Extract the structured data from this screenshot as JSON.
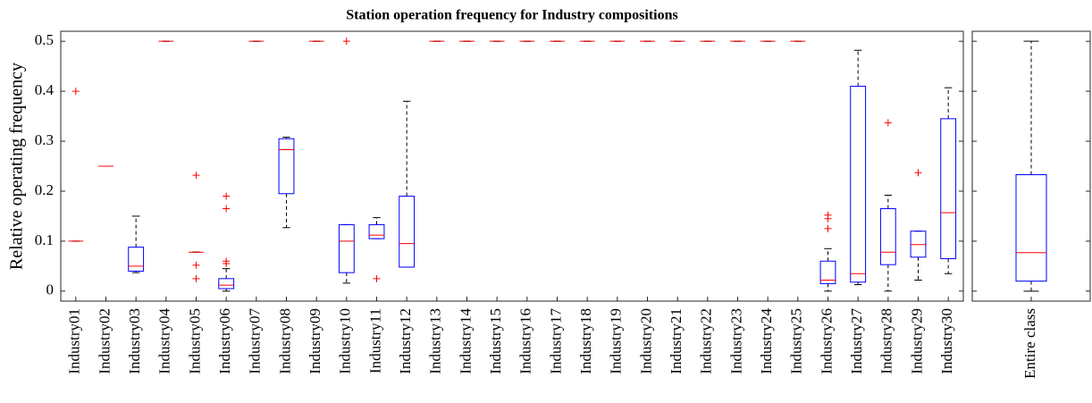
{
  "chart_data": [
    {
      "type": "box",
      "title": "Station operation frequency for Industry compositions",
      "ylabel": "Relative operating frequency",
      "categories": [
        "Industry01",
        "Industry02",
        "Industry03",
        "Industry04",
        "Industry05",
        "Industry06",
        "Industry07",
        "Industry08",
        "Industry09",
        "Industry10",
        "Industry11",
        "Industry12",
        "Industry13",
        "Industry14",
        "Industry15",
        "Industry16",
        "Industry17",
        "Industry18",
        "Industry19",
        "Industry20",
        "Industry21",
        "Industry22",
        "Industry23",
        "Industry24",
        "Industry25",
        "Industry26",
        "Industry27",
        "Industry28",
        "Industry29",
        "Industry30"
      ],
      "boxes": [
        {
          "whislo": 0.1,
          "q1": 0.1,
          "med": 0.1,
          "q3": 0.1,
          "whishi": 0.1,
          "fliers": [
            0.4
          ]
        },
        {
          "whislo": 0.25,
          "q1": 0.25,
          "med": 0.25,
          "q3": 0.25,
          "whishi": 0.25,
          "fliers": []
        },
        {
          "whislo": 0.037,
          "q1": 0.04,
          "med": 0.05,
          "q3": 0.088,
          "whishi": 0.15,
          "fliers": []
        },
        {
          "whislo": 0.5,
          "q1": 0.5,
          "med": 0.5,
          "q3": 0.5,
          "whishi": 0.5,
          "fliers": []
        },
        {
          "whislo": 0.078,
          "q1": 0.078,
          "med": 0.078,
          "q3": 0.078,
          "whishi": 0.078,
          "fliers": [
            0.232,
            0.052,
            0.025
          ]
        },
        {
          "whislo": 0,
          "q1": 0.005,
          "med": 0.012,
          "q3": 0.025,
          "whishi": 0.045,
          "fliers": [
            0.19,
            0.165,
            0.06,
            0.055
          ]
        },
        {
          "whislo": 0.5,
          "q1": 0.5,
          "med": 0.5,
          "q3": 0.5,
          "whishi": 0.5,
          "fliers": []
        },
        {
          "whislo": 0.127,
          "q1": 0.195,
          "med": 0.283,
          "q3": 0.305,
          "whishi": 0.308,
          "fliers": []
        },
        {
          "whislo": 0.5,
          "q1": 0.5,
          "med": 0.5,
          "q3": 0.5,
          "whishi": 0.5,
          "fliers": []
        },
        {
          "whislo": 0.016,
          "q1": 0.037,
          "med": 0.1,
          "q3": 0.133,
          "whishi": 0.133,
          "fliers": [
            0.5
          ]
        },
        {
          "whislo": 0.105,
          "q1": 0.105,
          "med": 0.112,
          "q3": 0.133,
          "whishi": 0.147,
          "fliers": [
            0.025
          ]
        },
        {
          "whislo": 0.048,
          "q1": 0.048,
          "med": 0.095,
          "q3": 0.19,
          "whishi": 0.38,
          "fliers": []
        },
        {
          "whislo": 0.5,
          "q1": 0.5,
          "med": 0.5,
          "q3": 0.5,
          "whishi": 0.5,
          "fliers": []
        },
        {
          "whislo": 0.5,
          "q1": 0.5,
          "med": 0.5,
          "q3": 0.5,
          "whishi": 0.5,
          "fliers": []
        },
        {
          "whislo": 0.5,
          "q1": 0.5,
          "med": 0.5,
          "q3": 0.5,
          "whishi": 0.5,
          "fliers": []
        },
        {
          "whislo": 0.5,
          "q1": 0.5,
          "med": 0.5,
          "q3": 0.5,
          "whishi": 0.5,
          "fliers": []
        },
        {
          "whislo": 0.5,
          "q1": 0.5,
          "med": 0.5,
          "q3": 0.5,
          "whishi": 0.5,
          "fliers": []
        },
        {
          "whislo": 0.5,
          "q1": 0.5,
          "med": 0.5,
          "q3": 0.5,
          "whishi": 0.5,
          "fliers": []
        },
        {
          "whislo": 0.5,
          "q1": 0.5,
          "med": 0.5,
          "q3": 0.5,
          "whishi": 0.5,
          "fliers": []
        },
        {
          "whislo": 0.5,
          "q1": 0.5,
          "med": 0.5,
          "q3": 0.5,
          "whishi": 0.5,
          "fliers": []
        },
        {
          "whislo": 0.5,
          "q1": 0.5,
          "med": 0.5,
          "q3": 0.5,
          "whishi": 0.5,
          "fliers": []
        },
        {
          "whislo": 0.5,
          "q1": 0.5,
          "med": 0.5,
          "q3": 0.5,
          "whishi": 0.5,
          "fliers": []
        },
        {
          "whislo": 0.5,
          "q1": 0.5,
          "med": 0.5,
          "q3": 0.5,
          "whishi": 0.5,
          "fliers": []
        },
        {
          "whislo": 0.5,
          "q1": 0.5,
          "med": 0.5,
          "q3": 0.5,
          "whishi": 0.5,
          "fliers": []
        },
        {
          "whislo": 0.5,
          "q1": 0.5,
          "med": 0.5,
          "q3": 0.5,
          "whishi": 0.5,
          "fliers": []
        },
        {
          "whislo": 0,
          "q1": 0.015,
          "med": 0.022,
          "q3": 0.06,
          "whishi": 0.085,
          "fliers": [
            0.152,
            0.145,
            0.125
          ]
        },
        {
          "whislo": 0.013,
          "q1": 0.018,
          "med": 0.035,
          "q3": 0.41,
          "whishi": 0.482,
          "fliers": []
        },
        {
          "whislo": 0,
          "q1": 0.053,
          "med": 0.078,
          "q3": 0.165,
          "whishi": 0.192,
          "fliers": [
            0.337
          ]
        },
        {
          "whislo": 0.022,
          "q1": 0.068,
          "med": 0.093,
          "q3": 0.12,
          "whishi": 0.12,
          "fliers": [
            0.237
          ]
        },
        {
          "whislo": 0.035,
          "q1": 0.065,
          "med": 0.157,
          "q3": 0.345,
          "whishi": 0.407,
          "fliers": []
        }
      ],
      "box_color": "#0000ff",
      "median_color": "#ff0000",
      "flier_color": "#ff0000",
      "ylim": [
        -0.02,
        0.52
      ],
      "yticks": [
        0,
        0.1,
        0.2,
        0.3,
        0.4,
        0.5
      ]
    },
    {
      "type": "box",
      "categories": [
        "Entire class"
      ],
      "boxes": [
        {
          "whislo": 0,
          "q1": 0.02,
          "med": 0.077,
          "q3": 0.233,
          "whishi": 0.5,
          "fliers": []
        }
      ],
      "box_color": "#0000ff",
      "median_color": "#ff0000",
      "flier_color": "#ff0000",
      "ylim": [
        -0.02,
        0.52
      ],
      "yticks": [
        0,
        0.1,
        0.2,
        0.3,
        0.4,
        0.5
      ]
    }
  ]
}
